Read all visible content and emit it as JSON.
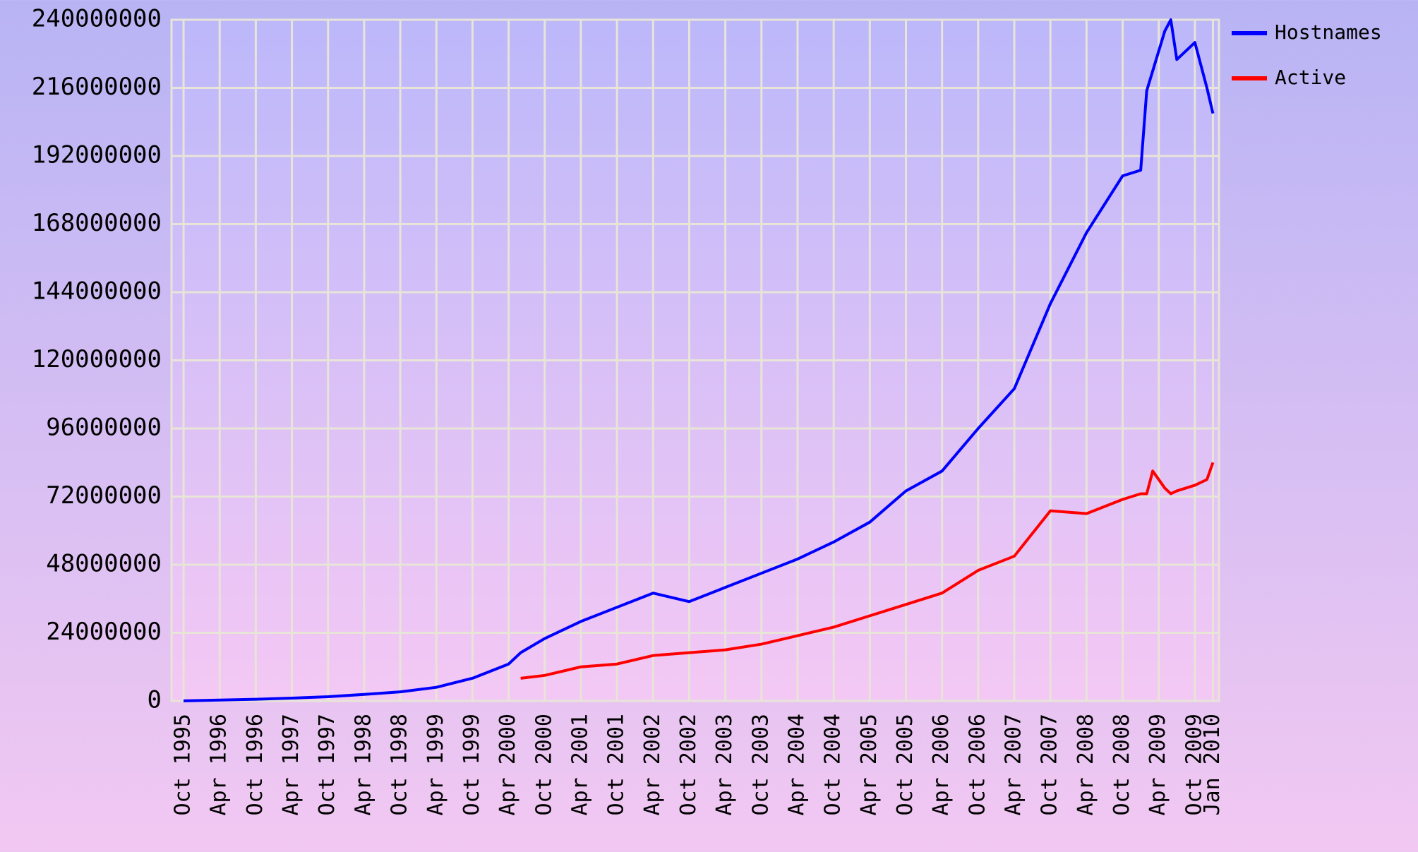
{
  "chart_data": {
    "type": "line",
    "x": [
      "1995-10",
      "1996-04",
      "1996-10",
      "1997-04",
      "1997-10",
      "1998-04",
      "1998-10",
      "1999-04",
      "1999-10",
      "2000-04",
      "2000-06",
      "2000-10",
      "2001-04",
      "2001-10",
      "2002-04",
      "2002-10",
      "2003-04",
      "2003-10",
      "2004-04",
      "2004-10",
      "2005-04",
      "2005-10",
      "2006-04",
      "2006-10",
      "2007-04",
      "2007-10",
      "2008-04",
      "2008-10",
      "2009-01",
      "2009-02",
      "2009-03",
      "2009-05",
      "2009-06",
      "2009-07",
      "2009-10",
      "2009-12",
      "2010-01"
    ],
    "series": [
      {
        "name": "Hostnames",
        "color": "#0000ff",
        "values": [
          20000,
          300000,
          600000,
          1000000,
          1500000,
          2300000,
          3200000,
          4800000,
          8000000,
          13000000,
          17000000,
          22000000,
          28000000,
          33000000,
          38000000,
          35000000,
          40000000,
          45000000,
          50000000,
          56000000,
          63000000,
          74000000,
          81000000,
          96000000,
          110000000,
          140000000,
          165000000,
          185000000,
          187000000,
          215000000,
          222000000,
          236000000,
          240000000,
          226000000,
          232000000,
          216000000,
          207000000
        ]
      },
      {
        "name": "Active",
        "color": "#ff0000",
        "values": [
          null,
          null,
          null,
          null,
          null,
          null,
          null,
          null,
          null,
          null,
          8000000,
          9000000,
          12000000,
          13000000,
          16000000,
          17000000,
          18000000,
          20000000,
          23000000,
          26000000,
          30000000,
          34000000,
          38000000,
          46000000,
          51000000,
          67000000,
          66000000,
          71000000,
          73000000,
          73000000,
          81000000,
          75000000,
          73000000,
          74000000,
          76000000,
          78000000,
          84000000
        ]
      }
    ],
    "xlim": [
      "1995-08",
      "2010-02"
    ],
    "xticks": [
      {
        "value": "1995-10",
        "label": "Oct 1995"
      },
      {
        "value": "1996-04",
        "label": "Apr 1996"
      },
      {
        "value": "1996-10",
        "label": "Oct 1996"
      },
      {
        "value": "1997-04",
        "label": "Apr 1997"
      },
      {
        "value": "1997-10",
        "label": "Oct 1997"
      },
      {
        "value": "1998-04",
        "label": "Apr 1998"
      },
      {
        "value": "1998-10",
        "label": "Oct 1998"
      },
      {
        "value": "1999-04",
        "label": "Apr 1999"
      },
      {
        "value": "1999-10",
        "label": "Oct 1999"
      },
      {
        "value": "2000-04",
        "label": "Apr 2000"
      },
      {
        "value": "2000-10",
        "label": "Oct 2000"
      },
      {
        "value": "2001-04",
        "label": "Apr 2001"
      },
      {
        "value": "2001-10",
        "label": "Oct 2001"
      },
      {
        "value": "2002-04",
        "label": "Apr 2002"
      },
      {
        "value": "2002-10",
        "label": "Oct 2002"
      },
      {
        "value": "2003-04",
        "label": "Apr 2003"
      },
      {
        "value": "2003-10",
        "label": "Oct 2003"
      },
      {
        "value": "2004-04",
        "label": "Apr 2004"
      },
      {
        "value": "2004-10",
        "label": "Oct 2004"
      },
      {
        "value": "2005-04",
        "label": "Apr 2005"
      },
      {
        "value": "2005-10",
        "label": "Oct 2005"
      },
      {
        "value": "2006-04",
        "label": "Apr 2006"
      },
      {
        "value": "2006-10",
        "label": "Oct 2006"
      },
      {
        "value": "2007-04",
        "label": "Apr 2007"
      },
      {
        "value": "2007-10",
        "label": "Oct 2007"
      },
      {
        "value": "2008-04",
        "label": "Apr 2008"
      },
      {
        "value": "2008-10",
        "label": "Oct 2008"
      },
      {
        "value": "2009-04",
        "label": "Apr 2009"
      },
      {
        "value": "2009-10",
        "label": "Oct 2009"
      },
      {
        "value": "2010-01",
        "label": "Jan 2010"
      }
    ],
    "ylim": [
      0,
      240000000
    ],
    "yticks": [
      0,
      24000000,
      48000000,
      72000000,
      96000000,
      120000000,
      144000000,
      168000000,
      192000000,
      216000000,
      240000000
    ],
    "grid": true,
    "legend": "right"
  }
}
